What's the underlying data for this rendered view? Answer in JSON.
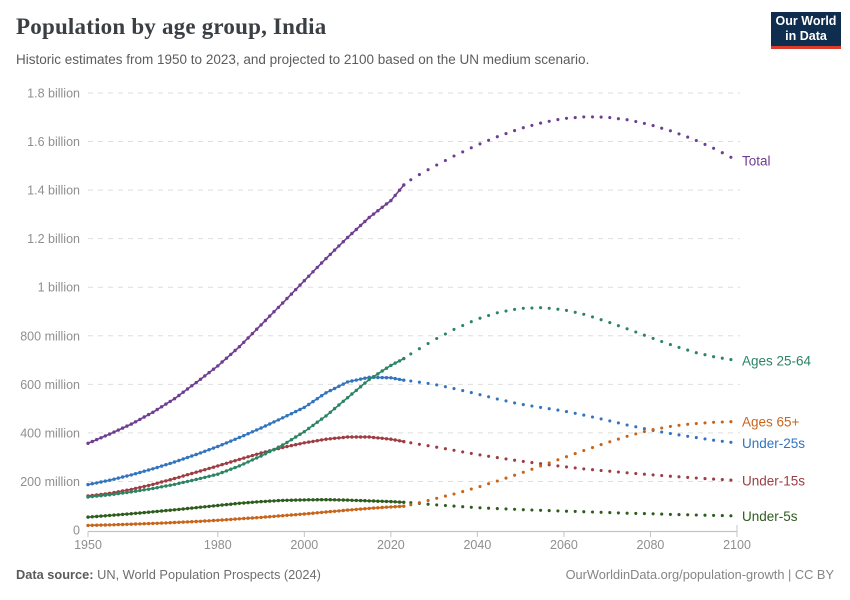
{
  "header": {
    "title": "Population by age group, India",
    "subtitle": "Historic estimates from 1950 to 2023, and projected to 2100 based on the UN medium scenario.",
    "logo": {
      "line1": "Our World",
      "line2": "in Data",
      "bg_color": "#0f2d4e",
      "accent_color": "#dc3b2a"
    }
  },
  "footer": {
    "datasource_label": "Data source:",
    "datasource_text": " UN, World Population Prospects (2024)",
    "citation": "OurWorldinData.org/population-growth | CC BY"
  },
  "colors": {
    "grid": "#dedede",
    "axis": "#c4c4c4",
    "tick_label": "#8f8f8f"
  },
  "chart_data": {
    "type": "line",
    "title": "Population by age group, India",
    "xlabel": "",
    "ylabel": "",
    "unit": "millions of people",
    "xlim": [
      1950,
      2100
    ],
    "ylim": [
      0,
      1800
    ],
    "grid": "dashed-horizontal",
    "legend_position": "right-of-line-ends",
    "projection_start": 2023,
    "x_ticks": [
      1950,
      1980,
      2000,
      2020,
      2040,
      2060,
      2080,
      2100
    ],
    "y_ticks": [
      {
        "value": 0,
        "label": "0"
      },
      {
        "value": 200,
        "label": "200 million"
      },
      {
        "value": 400,
        "label": "400 million"
      },
      {
        "value": 600,
        "label": "600 million"
      },
      {
        "value": 800,
        "label": "800 million"
      },
      {
        "value": 1000,
        "label": "1 billion"
      },
      {
        "value": 1200,
        "label": "1.2 billion"
      },
      {
        "value": 1400,
        "label": "1.4 billion"
      },
      {
        "value": 1600,
        "label": "1.6 billion"
      },
      {
        "value": 1800,
        "label": "1.8 billion"
      }
    ],
    "series": [
      {
        "name": "Total",
        "label": "Total",
        "color": "#6d3e91",
        "historic": [
          [
            1950,
            357
          ],
          [
            1955,
            395
          ],
          [
            1960,
            436
          ],
          [
            1965,
            485
          ],
          [
            1970,
            541
          ],
          [
            1975,
            607
          ],
          [
            1980,
            676
          ],
          [
            1985,
            755
          ],
          [
            1990,
            845
          ],
          [
            1995,
            935
          ],
          [
            2000,
            1027
          ],
          [
            2005,
            1118
          ],
          [
            2010,
            1205
          ],
          [
            2015,
            1287
          ],
          [
            2020,
            1357
          ],
          [
            2023,
            1421
          ]
        ],
        "projected": [
          [
            2023,
            1421
          ],
          [
            2025,
            1448
          ],
          [
            2030,
            1498
          ],
          [
            2035,
            1544
          ],
          [
            2040,
            1586
          ],
          [
            2045,
            1623
          ],
          [
            2050,
            1654
          ],
          [
            2055,
            1678
          ],
          [
            2060,
            1695
          ],
          [
            2065,
            1702
          ],
          [
            2070,
            1700
          ],
          [
            2075,
            1689
          ],
          [
            2080,
            1669
          ],
          [
            2085,
            1642
          ],
          [
            2090,
            1609
          ],
          [
            2095,
            1569
          ],
          [
            2100,
            1522
          ]
        ]
      },
      {
        "name": "Ages 25-64",
        "label": "Ages 25-64",
        "color": "#2c8465",
        "historic": [
          [
            1950,
            136
          ],
          [
            1955,
            145
          ],
          [
            1960,
            157
          ],
          [
            1965,
            171
          ],
          [
            1970,
            188
          ],
          [
            1975,
            208
          ],
          [
            1980,
            230
          ],
          [
            1985,
            264
          ],
          [
            1990,
            305
          ],
          [
            1995,
            350
          ],
          [
            2000,
            405
          ],
          [
            2005,
            470
          ],
          [
            2010,
            545
          ],
          [
            2015,
            620
          ],
          [
            2020,
            678
          ],
          [
            2023,
            706
          ]
        ],
        "projected": [
          [
            2023,
            706
          ],
          [
            2025,
            730
          ],
          [
            2030,
            783
          ],
          [
            2035,
            830
          ],
          [
            2040,
            869
          ],
          [
            2045,
            897
          ],
          [
            2050,
            913
          ],
          [
            2055,
            916
          ],
          [
            2060,
            907
          ],
          [
            2065,
            887
          ],
          [
            2070,
            858
          ],
          [
            2075,
            826
          ],
          [
            2080,
            793
          ],
          [
            2085,
            761
          ],
          [
            2090,
            733
          ],
          [
            2095,
            712
          ],
          [
            2100,
            698
          ]
        ]
      },
      {
        "name": "Ages 65+",
        "label": "Ages 65+",
        "color": "#c8651b",
        "historic": [
          [
            1950,
            19
          ],
          [
            1955,
            21
          ],
          [
            1960,
            24
          ],
          [
            1965,
            27
          ],
          [
            1970,
            31
          ],
          [
            1975,
            35
          ],
          [
            1980,
            40
          ],
          [
            1985,
            46
          ],
          [
            1990,
            52
          ],
          [
            1995,
            59
          ],
          [
            2000,
            66
          ],
          [
            2005,
            74
          ],
          [
            2010,
            82
          ],
          [
            2015,
            89
          ],
          [
            2020,
            95
          ],
          [
            2023,
            98
          ]
        ],
        "projected": [
          [
            2023,
            98
          ],
          [
            2025,
            105
          ],
          [
            2030,
            128
          ],
          [
            2035,
            150
          ],
          [
            2040,
            176
          ],
          [
            2045,
            204
          ],
          [
            2050,
            234
          ],
          [
            2055,
            266
          ],
          [
            2060,
            298
          ],
          [
            2065,
            330
          ],
          [
            2070,
            360
          ],
          [
            2075,
            388
          ],
          [
            2080,
            412
          ],
          [
            2085,
            428
          ],
          [
            2090,
            438
          ],
          [
            2095,
            444
          ],
          [
            2100,
            447
          ]
        ]
      },
      {
        "name": "Under-25s",
        "label": "Under-25s",
        "color": "#3274bd",
        "historic": [
          [
            1950,
            187
          ],
          [
            1955,
            205
          ],
          [
            1960,
            227
          ],
          [
            1965,
            252
          ],
          [
            1970,
            280
          ],
          [
            1975,
            311
          ],
          [
            1980,
            344
          ],
          [
            1985,
            381
          ],
          [
            1990,
            420
          ],
          [
            1995,
            462
          ],
          [
            2000,
            505
          ],
          [
            2005,
            565
          ],
          [
            2010,
            610
          ],
          [
            2015,
            629
          ],
          [
            2020,
            627
          ],
          [
            2023,
            617
          ]
        ],
        "projected": [
          [
            2023,
            617
          ],
          [
            2025,
            613
          ],
          [
            2030,
            600
          ],
          [
            2035,
            581
          ],
          [
            2040,
            560
          ],
          [
            2045,
            538
          ],
          [
            2050,
            518
          ],
          [
            2055,
            504
          ],
          [
            2060,
            490
          ],
          [
            2065,
            472
          ],
          [
            2070,
            452
          ],
          [
            2075,
            431
          ],
          [
            2080,
            412
          ],
          [
            2085,
            396
          ],
          [
            2090,
            382
          ],
          [
            2095,
            369
          ],
          [
            2100,
            358
          ]
        ]
      },
      {
        "name": "Under-15s",
        "label": "Under-15s",
        "color": "#9d3d43",
        "historic": [
          [
            1950,
            140
          ],
          [
            1955,
            151
          ],
          [
            1960,
            167
          ],
          [
            1965,
            188
          ],
          [
            1970,
            212
          ],
          [
            1975,
            238
          ],
          [
            1980,
            264
          ],
          [
            1985,
            291
          ],
          [
            1990,
            317
          ],
          [
            1995,
            340
          ],
          [
            2000,
            359
          ],
          [
            2005,
            374
          ],
          [
            2010,
            383
          ],
          [
            2015,
            383
          ],
          [
            2020,
            374
          ],
          [
            2023,
            364
          ]
        ],
        "projected": [
          [
            2023,
            364
          ],
          [
            2025,
            358
          ],
          [
            2030,
            343
          ],
          [
            2035,
            327
          ],
          [
            2040,
            311
          ],
          [
            2045,
            297
          ],
          [
            2050,
            284
          ],
          [
            2055,
            272
          ],
          [
            2060,
            261
          ],
          [
            2065,
            251
          ],
          [
            2070,
            243
          ],
          [
            2075,
            235
          ],
          [
            2080,
            228
          ],
          [
            2085,
            221
          ],
          [
            2090,
            215
          ],
          [
            2095,
            209
          ],
          [
            2100,
            204
          ]
        ]
      },
      {
        "name": "Under-5s",
        "label": "Under-5s",
        "color": "#2e5c1e",
        "historic": [
          [
            1950,
            53
          ],
          [
            1955,
            60
          ],
          [
            1960,
            67
          ],
          [
            1965,
            75
          ],
          [
            1970,
            83
          ],
          [
            1975,
            92
          ],
          [
            1980,
            101
          ],
          [
            1985,
            110
          ],
          [
            1990,
            117
          ],
          [
            1995,
            122
          ],
          [
            2000,
            124
          ],
          [
            2005,
            125
          ],
          [
            2010,
            123
          ],
          [
            2015,
            120
          ],
          [
            2020,
            117
          ],
          [
            2023,
            114
          ]
        ],
        "projected": [
          [
            2023,
            114
          ],
          [
            2025,
            112
          ],
          [
            2030,
            104
          ],
          [
            2035,
            98
          ],
          [
            2040,
            92
          ],
          [
            2045,
            88
          ],
          [
            2050,
            84
          ],
          [
            2055,
            81
          ],
          [
            2060,
            78
          ],
          [
            2065,
            75
          ],
          [
            2070,
            72
          ],
          [
            2075,
            69
          ],
          [
            2080,
            67
          ],
          [
            2085,
            64
          ],
          [
            2090,
            62
          ],
          [
            2095,
            60
          ],
          [
            2100,
            58
          ]
        ]
      }
    ]
  }
}
